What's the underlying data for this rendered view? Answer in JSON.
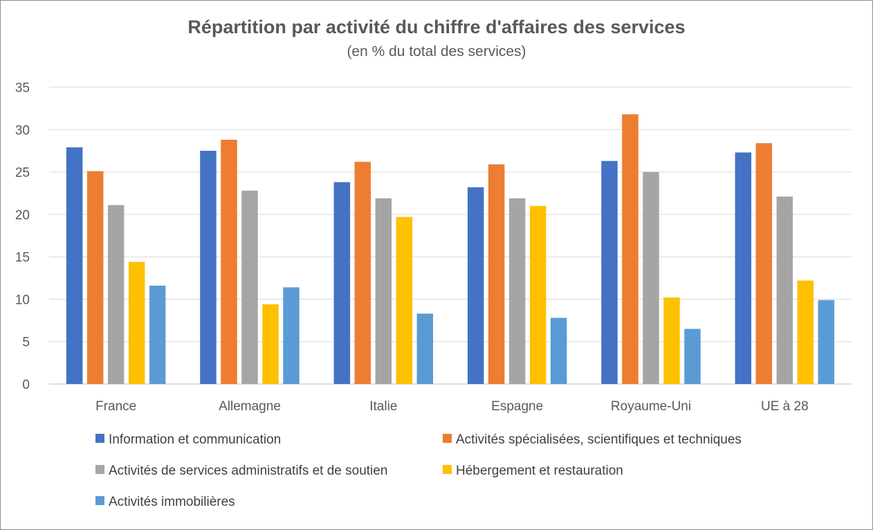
{
  "chart_data": {
    "type": "bar",
    "title": "Répartition par activité du chiffre d'affaires des services",
    "subtitle": "(en % du total des services)",
    "categories": [
      "France",
      "Allemagne",
      "Italie",
      "Espagne",
      "Royaume-Uni",
      "UE à 28"
    ],
    "series": [
      {
        "name": "Information et communication",
        "color": "#4472c4",
        "values": [
          27.9,
          27.5,
          23.8,
          23.2,
          26.3,
          27.3
        ]
      },
      {
        "name": "Activités spécialisées, scientifiques et techniques",
        "color": "#ed7d31",
        "values": [
          25.1,
          28.8,
          26.2,
          25.9,
          31.8,
          28.4
        ]
      },
      {
        "name": "Activités de services administratifs et de soutien",
        "color": "#a5a5a5",
        "values": [
          21.1,
          22.8,
          21.9,
          21.9,
          25.0,
          22.1
        ]
      },
      {
        "name": "Hébergement et restauration",
        "color": "#ffc000",
        "values": [
          14.4,
          9.4,
          19.7,
          21.0,
          10.2,
          12.2
        ]
      },
      {
        "name": "Activités immobilières",
        "color": "#5b9bd5",
        "values": [
          11.6,
          11.4,
          8.3,
          7.8,
          6.5,
          9.9
        ]
      }
    ],
    "ylim": [
      0,
      35
    ],
    "yticks": [
      "0",
      "5",
      "10",
      "15",
      "20",
      "25",
      "30",
      "35"
    ],
    "grid": true,
    "legend": "bottom"
  }
}
